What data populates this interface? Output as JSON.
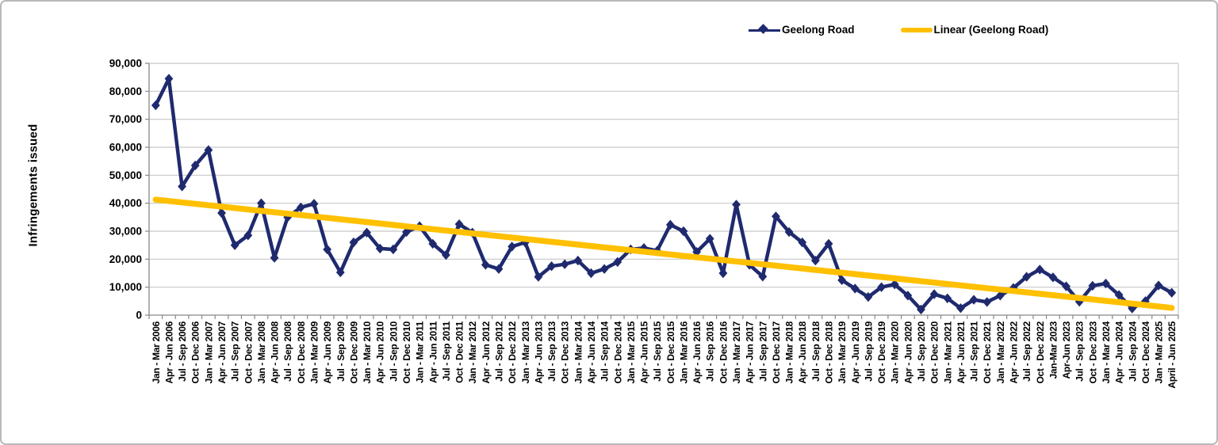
{
  "chart_data": {
    "type": "line",
    "title": "",
    "ylabel": "Infringements issued",
    "xlabel": "",
    "ylim": [
      0,
      90000
    ],
    "ytick_step": 10000,
    "ytick_labels": [
      "0",
      "10,000",
      "20,000",
      "30,000",
      "40,000",
      "50,000",
      "60,000",
      "70,000",
      "80,000",
      "90,000"
    ],
    "grid": true,
    "legend_position": "top-right",
    "categories": [
      "Jan - Mar 2006",
      "Apr - Jun 2006",
      "Jul - Sep 2006",
      "Oct - Dec 2006",
      "Jan - Mar 2007",
      "Apr - Jun 2007",
      "Jul - Sep 2007",
      "Oct - Dec 2007",
      "Jan - Mar 2008",
      "Apr - Jun 2008",
      "Jul - Sep 2008",
      "Oct - Dec 2008",
      "Jan - Mar 2009",
      "Apr - Jun 2009",
      "Jul - Sep 2009",
      "Oct - Dec 2009",
      "Jan - Mar 2010",
      "Apr - Jun 2010",
      "Jul - Sep 2010",
      "Oct - Dec 2010",
      "Jan - Mar 2011",
      "Apr - Jun 2011",
      "Jul - Sep 2011",
      "Oct - Dec 2011",
      "Jan - Mar 2012",
      "Apr - Jun 2012",
      "Jul - Sep 2012",
      "Oct - Dec 2012",
      "Jan - Mar 2013",
      "Apr - Jun 2013",
      "Jul - Sep 2013",
      "Oct - Dec 2013",
      "Jan - Mar 2014",
      "Apr - Jun 2014",
      "Jul - Sep 2014",
      "Oct - Dec 2014",
      "Jan - Mar 2015",
      "Apr - Jun 2015",
      "Jul - Sep 2015",
      "Oct - Dec 2015",
      "Jan - Mar 2016",
      "Apr - Jun 2016",
      "Jul - Sep 2016",
      "Oct - Dec 2016",
      "Jan - Mar 2017",
      "Apr - Jun 2017",
      "Jul - Sep 2017",
      "Oct - Dec 2017",
      "Jan - Mar 2018",
      "Apr - Jun 2018",
      "Jul - Sep 2018",
      "Oct - Dec 2018",
      "Jan - Mar 2019",
      "Apr - Jun 2019",
      "Jul - Sep 2019",
      "Oct - Dec 2019",
      "Jan - Mar 2020",
      "Apr - Jun 2020",
      "Jul - Sep 2020",
      "Oct - Dec 2020",
      "Jan - Mar 2021",
      "Apr - Jun 2021",
      "Jul - Sep 2021",
      "Oct - Dec 2021",
      "Jan - Mar 2022",
      "Apr - Jun 2022",
      "Jul - Sep 2022",
      "Oct - Dec 2022",
      "Jan-Mar 2023",
      "Apr-Jun 2023",
      "Jul - Sep 2023",
      "Oct - Dec 2023",
      "Jan - Mar 2024",
      "Apr - Jun 2024",
      "Jul - Sep 2024",
      "Oct - Dec 2024",
      "Jan - Mar 2025",
      "April - Jun 2025"
    ],
    "series": [
      {
        "name": "Geelong Road",
        "type": "line-markers",
        "marker": "diamond",
        "color": "#1f2a6e",
        "values": [
          75000,
          84500,
          46000,
          53500,
          59000,
          36500,
          25000,
          28500,
          40000,
          20500,
          35000,
          38500,
          39800,
          23500,
          15300,
          26000,
          29500,
          23800,
          23500,
          29700,
          31800,
          25500,
          21500,
          32500,
          29500,
          18000,
          16500,
          24500,
          26000,
          13700,
          17500,
          18200,
          19500,
          15000,
          16500,
          19000,
          23500,
          24000,
          23000,
          32300,
          30000,
          22600,
          27300,
          15000,
          39500,
          18000,
          13800,
          35300,
          29700,
          26000,
          19500,
          25500,
          12500,
          9500,
          6500,
          10000,
          11000,
          7000,
          2000,
          7500,
          6000,
          2500,
          5500,
          4700,
          7000,
          9700,
          13700,
          16300,
          13500,
          10300,
          4800,
          10500,
          11300,
          7200,
          2400,
          5000,
          10600,
          8000
        ]
      },
      {
        "name": "Linear (Geelong Road)",
        "type": "trendline",
        "color": "#ffc000",
        "start_value": 41300,
        "end_value": 2600
      }
    ],
    "colors": {
      "gridline": "#c8c8c8",
      "axis": "#898989",
      "text": "#000000",
      "background": "#ffffff"
    }
  }
}
